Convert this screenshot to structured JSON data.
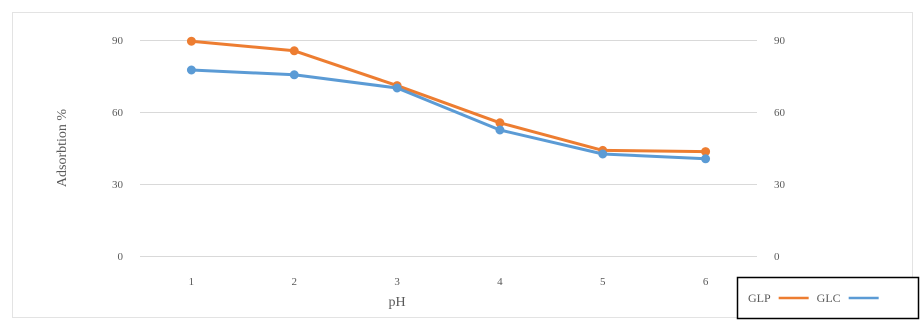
{
  "chart_data": {
    "type": "line",
    "title": "",
    "xlabel": "pH",
    "ylabel": "Adsorbtion %",
    "categories": [
      "1",
      "2",
      "3",
      "4",
      "5",
      "6"
    ],
    "ylim": [
      0,
      90
    ],
    "yticks": [
      0,
      30,
      60,
      90
    ],
    "secondary_ylim": [
      0,
      90
    ],
    "secondary_yticks": [
      0,
      30,
      60,
      90
    ],
    "grid": true,
    "legend_position": "bottom-right",
    "series": [
      {
        "name": "GLP",
        "color": "#ED7D31",
        "values": [
          89.5,
          85.5,
          71,
          55.5,
          44,
          43.5
        ]
      },
      {
        "name": "GLC",
        "color": "#5B9BD5",
        "values": [
          77.5,
          75.5,
          70,
          52.5,
          42.5,
          40.5
        ]
      }
    ]
  }
}
